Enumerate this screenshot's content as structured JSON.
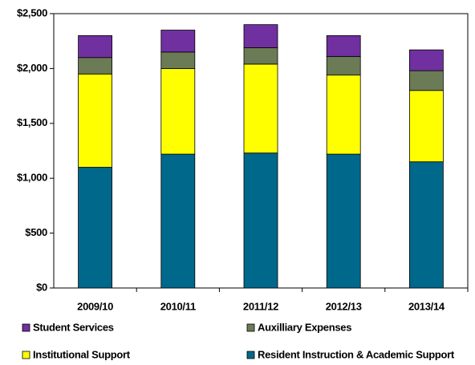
{
  "chart_data": {
    "type": "stacked_bar",
    "categories": [
      "2009/10",
      "2010/11",
      "2011/12",
      "2012/13",
      "2013/14"
    ],
    "series": [
      {
        "name": "Resident Instruction & Academic Support",
        "color": "#00688b",
        "values": [
          1100,
          1220,
          1230,
          1220,
          1150
        ]
      },
      {
        "name": "Institutional Support",
        "color": "#ffff00",
        "values": [
          850,
          780,
          810,
          720,
          650
        ]
      },
      {
        "name": "Auxilliary Expenses",
        "color": "#6b7b55",
        "values": [
          150,
          150,
          150,
          170,
          180
        ]
      },
      {
        "name": "Student Services",
        "color": "#7030a0",
        "values": [
          200,
          200,
          210,
          190,
          190
        ]
      }
    ],
    "ylim": [
      0,
      2500
    ],
    "yticks": [
      {
        "value": 0,
        "label": "$0"
      },
      {
        "value": 500,
        "label": "$500"
      },
      {
        "value": 1000,
        "label": "$1,000"
      },
      {
        "value": 1500,
        "label": "$1,500"
      },
      {
        "value": 2000,
        "label": "$2,000"
      },
      {
        "value": 2500,
        "label": "$2,500"
      }
    ],
    "legend": "bottom"
  }
}
